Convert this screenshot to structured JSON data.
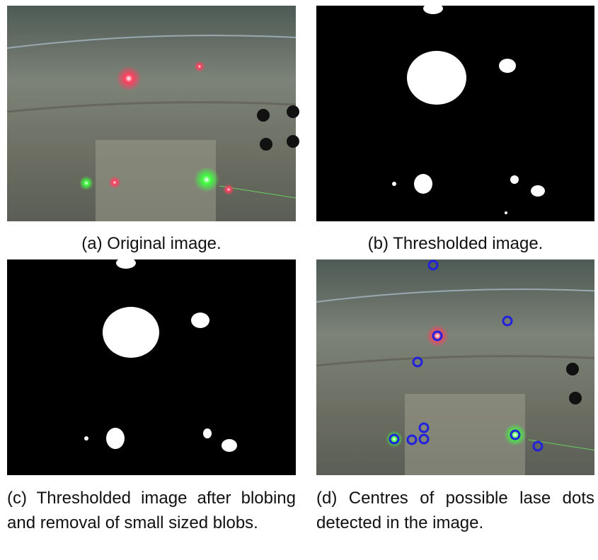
{
  "figure": {
    "subfigures": [
      {
        "caption": "(a) Original image."
      },
      {
        "caption": "(b) Thresholded image."
      },
      {
        "caption": "(c) Thresholded image after blobing and removal of small sized blobs."
      },
      {
        "caption": "(d) Centres of possible lase dots detected in the image."
      }
    ]
  }
}
